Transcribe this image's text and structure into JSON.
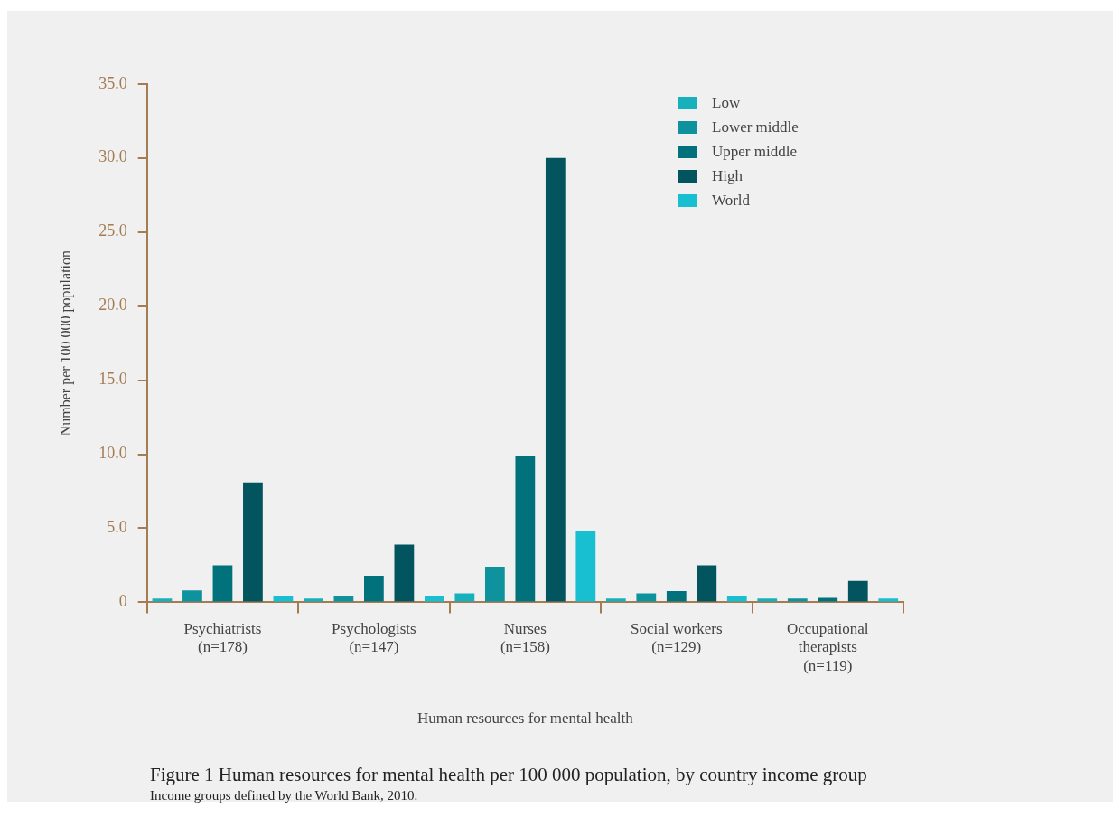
{
  "chart_data": {
    "type": "bar",
    "title": "Figure 1 Human resources for mental health per 100 000 population, by country income group",
    "subtitle": "Income groups defined by the World Bank, 2010.",
    "xlabel": "Human resources for mental health",
    "ylabel": "Number per 100 000 population",
    "categories": [
      "Psychiatrists\n(n=178)",
      "Psychologists\n(n=147)",
      "Nurses\n(n=158)",
      "Social workers\n(n=129)",
      "Occupational\ntherapists\n(n=119)"
    ],
    "series": [
      {
        "name": "Low",
        "color": "#17b0bd",
        "values": [
          0.25,
          0.25,
          0.6,
          0.25,
          0.25
        ]
      },
      {
        "name": "Lower middle",
        "color": "#0e929e",
        "values": [
          0.8,
          0.45,
          2.4,
          0.6,
          0.25
        ]
      },
      {
        "name": "Upper middle",
        "color": "#01717b",
        "values": [
          2.5,
          1.8,
          9.9,
          0.75,
          0.3
        ]
      },
      {
        "name": "High",
        "color": "#02545f",
        "values": [
          8.1,
          3.9,
          30.0,
          2.5,
          1.45
        ]
      },
      {
        "name": "World",
        "color": "#18bfd1",
        "values": [
          0.45,
          0.45,
          4.8,
          0.45,
          0.25
        ]
      }
    ],
    "ylim": [
      0,
      35
    ],
    "yticks": [
      {
        "value": 0,
        "label": "0"
      },
      {
        "value": 5,
        "label": "5.0"
      },
      {
        "value": 10,
        "label": "10.0"
      },
      {
        "value": 15,
        "label": "15.0"
      },
      {
        "value": 20,
        "label": "20.0"
      },
      {
        "value": 25,
        "label": "25.0"
      },
      {
        "value": 30,
        "label": "30.0"
      },
      {
        "value": 35,
        "label": "35.0"
      }
    ],
    "grid": false,
    "legend": "top right"
  }
}
